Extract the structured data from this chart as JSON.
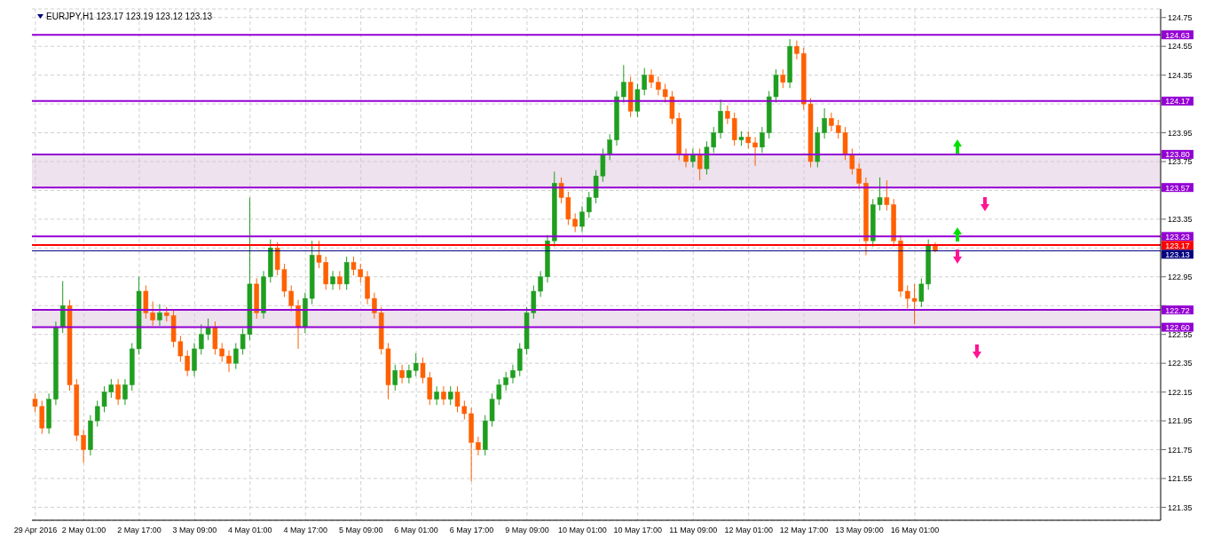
{
  "chart_data": {
    "type": "candlestick",
    "title": "EURJPY,H1  123.17 123.19 123.12 123.13",
    "categories": [
      "29 Apr 2016",
      null,
      null,
      null,
      null,
      null,
      null,
      "2 May 01:00",
      null,
      null,
      null,
      null,
      null,
      null,
      null,
      "2 May 17:00",
      null,
      null,
      null,
      null,
      null,
      null,
      null,
      "3 May 09:00",
      null,
      null,
      null,
      null,
      null,
      null,
      null,
      "4 May 01:00",
      null,
      null,
      null,
      null,
      null,
      null,
      null,
      "4 May 17:00",
      null,
      null,
      null,
      null,
      null,
      null,
      null,
      "5 May 09:00",
      null,
      null,
      null,
      null,
      null,
      null,
      null,
      "6 May 01:00",
      null,
      null,
      null,
      null,
      null,
      null,
      null,
      "6 May 17:00",
      null,
      null,
      null,
      null,
      null,
      null,
      null,
      "9 May 09:00",
      null,
      null,
      null,
      null,
      null,
      null,
      null,
      "10 May 01:00",
      null,
      null,
      null,
      null,
      null,
      null,
      null,
      "10 May 17:00",
      null,
      null,
      null,
      null,
      null,
      null,
      null,
      "11 May 09:00",
      null,
      null,
      null,
      null,
      null,
      null,
      null,
      "12 May 01:00",
      null,
      null,
      null,
      null,
      null,
      null,
      null,
      "12 May 17:00",
      null,
      null,
      null,
      null,
      null,
      null,
      null,
      "13 May 09:00",
      null,
      null,
      null,
      null,
      null,
      null,
      null,
      "16 May 01:00",
      null,
      null,
      null,
      null,
      null,
      null,
      null,
      null,
      null,
      null,
      null,
      null,
      null,
      null,
      null,
      null,
      null,
      null,
      null,
      null,
      null,
      null,
      null,
      null,
      null,
      null,
      null,
      null,
      null,
      null,
      null,
      null,
      null,
      null,
      null
    ],
    "ohlc": [
      [
        122.1,
        122.14,
        122.01,
        122.05
      ],
      [
        122.05,
        122.09,
        121.86,
        121.9
      ],
      [
        121.9,
        122.14,
        121.86,
        122.1
      ],
      [
        122.1,
        122.64,
        122.06,
        122.6
      ],
      [
        122.6,
        122.92,
        122.56,
        122.75
      ],
      [
        122.75,
        122.79,
        122.16,
        122.2
      ],
      [
        122.2,
        122.24,
        121.81,
        121.85
      ],
      [
        121.85,
        121.89,
        121.66,
        121.75
      ],
      [
        121.75,
        121.99,
        121.71,
        121.95
      ],
      [
        121.95,
        122.09,
        121.91,
        122.05
      ],
      [
        122.05,
        122.19,
        122.01,
        122.15
      ],
      [
        122.15,
        122.24,
        122.11,
        122.2
      ],
      [
        122.2,
        122.24,
        122.06,
        122.1
      ],
      [
        122.1,
        122.24,
        122.06,
        122.2
      ],
      [
        122.2,
        122.49,
        122.16,
        122.45
      ],
      [
        122.45,
        122.95,
        122.41,
        122.85
      ],
      [
        122.85,
        122.89,
        122.66,
        122.7
      ],
      [
        122.7,
        122.78,
        122.61,
        122.65
      ],
      [
        122.65,
        122.76,
        122.61,
        122.7
      ],
      [
        122.7,
        122.74,
        122.64,
        122.68
      ],
      [
        122.68,
        122.72,
        122.46,
        122.5
      ],
      [
        122.5,
        122.54,
        122.36,
        122.4
      ],
      [
        122.4,
        122.44,
        122.26,
        122.3
      ],
      [
        122.3,
        122.49,
        122.26,
        122.45
      ],
      [
        122.45,
        122.62,
        122.41,
        122.55
      ],
      [
        122.55,
        122.66,
        122.51,
        122.6
      ],
      [
        122.6,
        122.64,
        122.41,
        122.45
      ],
      [
        122.45,
        122.49,
        122.36,
        122.4
      ],
      [
        122.4,
        122.44,
        122.29,
        122.35
      ],
      [
        122.35,
        122.49,
        122.31,
        122.45
      ],
      [
        122.45,
        122.59,
        122.41,
        122.55
      ],
      [
        122.55,
        123.5,
        122.51,
        122.9
      ],
      [
        122.9,
        122.94,
        122.66,
        122.7
      ],
      [
        122.7,
        122.99,
        122.66,
        122.95
      ],
      [
        122.95,
        123.21,
        122.91,
        123.15
      ],
      [
        123.15,
        123.19,
        122.96,
        123.0
      ],
      [
        123.0,
        123.04,
        122.81,
        122.85
      ],
      [
        122.85,
        122.89,
        122.71,
        122.75
      ],
      [
        122.75,
        122.79,
        122.45,
        122.6
      ],
      [
        122.6,
        122.84,
        122.56,
        122.8
      ],
      [
        122.8,
        123.2,
        122.76,
        123.1
      ],
      [
        123.1,
        123.2,
        123.01,
        123.05
      ],
      [
        123.05,
        123.09,
        122.86,
        122.9
      ],
      [
        122.9,
        122.99,
        122.86,
        122.95
      ],
      [
        122.95,
        122.99,
        122.86,
        122.9
      ],
      [
        122.9,
        123.09,
        122.86,
        123.05
      ],
      [
        123.05,
        123.09,
        122.96,
        123.0
      ],
      [
        123.0,
        123.04,
        122.91,
        122.95
      ],
      [
        122.95,
        122.99,
        122.76,
        122.8
      ],
      [
        122.8,
        122.84,
        122.66,
        122.7
      ],
      [
        122.7,
        122.74,
        122.41,
        122.45
      ],
      [
        122.45,
        122.49,
        122.1,
        122.2
      ],
      [
        122.2,
        122.34,
        122.16,
        122.3
      ],
      [
        122.3,
        122.34,
        122.21,
        122.25
      ],
      [
        122.25,
        122.34,
        122.21,
        122.3
      ],
      [
        122.3,
        122.42,
        122.26,
        122.35
      ],
      [
        122.35,
        122.39,
        122.21,
        122.25
      ],
      [
        122.25,
        122.29,
        122.06,
        122.1
      ],
      [
        122.1,
        122.19,
        122.06,
        122.15
      ],
      [
        122.15,
        122.19,
        122.06,
        122.1
      ],
      [
        122.1,
        122.19,
        122.06,
        122.15
      ],
      [
        122.15,
        122.19,
        122.01,
        122.05
      ],
      [
        122.05,
        122.09,
        121.96,
        122.0
      ],
      [
        122.0,
        122.04,
        121.53,
        121.8
      ],
      [
        121.8,
        121.84,
        121.71,
        121.75
      ],
      [
        121.75,
        121.99,
        121.71,
        121.95
      ],
      [
        121.95,
        122.14,
        121.91,
        122.1
      ],
      [
        122.1,
        122.24,
        122.06,
        122.2
      ],
      [
        122.2,
        122.29,
        122.16,
        122.25
      ],
      [
        122.25,
        122.34,
        122.21,
        122.3
      ],
      [
        122.3,
        122.49,
        122.26,
        122.45
      ],
      [
        122.45,
        122.74,
        122.41,
        122.7
      ],
      [
        122.7,
        122.89,
        122.66,
        122.85
      ],
      [
        122.85,
        122.99,
        122.81,
        122.95
      ],
      [
        122.95,
        123.24,
        122.91,
        123.2
      ],
      [
        123.2,
        123.68,
        123.16,
        123.6
      ],
      [
        123.6,
        123.64,
        123.46,
        123.5
      ],
      [
        123.5,
        123.54,
        123.31,
        123.35
      ],
      [
        123.35,
        123.39,
        123.26,
        123.3
      ],
      [
        123.3,
        123.44,
        123.26,
        123.4
      ],
      [
        123.4,
        123.54,
        123.36,
        123.5
      ],
      [
        123.5,
        123.69,
        123.46,
        123.65
      ],
      [
        123.65,
        123.84,
        123.61,
        123.8
      ],
      [
        123.8,
        123.94,
        123.76,
        123.9
      ],
      [
        123.9,
        124.24,
        123.86,
        124.2
      ],
      [
        124.2,
        124.42,
        124.16,
        124.3
      ],
      [
        124.3,
        124.34,
        124.06,
        124.1
      ],
      [
        124.1,
        124.29,
        124.06,
        124.25
      ],
      [
        124.25,
        124.4,
        124.21,
        124.35
      ],
      [
        124.35,
        124.39,
        124.26,
        124.3
      ],
      [
        124.3,
        124.34,
        124.21,
        124.25
      ],
      [
        124.25,
        124.29,
        124.16,
        124.2
      ],
      [
        124.2,
        124.24,
        124.01,
        124.05
      ],
      [
        124.05,
        124.09,
        123.76,
        123.8
      ],
      [
        123.8,
        123.84,
        123.71,
        123.75
      ],
      [
        123.75,
        123.84,
        123.71,
        123.8
      ],
      [
        123.8,
        123.84,
        123.62,
        123.7
      ],
      [
        123.7,
        123.89,
        123.66,
        123.85
      ],
      [
        123.85,
        123.99,
        123.81,
        123.95
      ],
      [
        123.95,
        124.18,
        123.91,
        124.1
      ],
      [
        124.1,
        124.14,
        124.01,
        124.05
      ],
      [
        124.05,
        124.09,
        123.86,
        123.9
      ],
      [
        123.9,
        123.96,
        123.86,
        123.92
      ],
      [
        123.92,
        123.96,
        123.84,
        123.88
      ],
      [
        123.88,
        123.92,
        123.72,
        123.85
      ],
      [
        123.85,
        123.99,
        123.81,
        123.95
      ],
      [
        123.95,
        124.24,
        123.91,
        124.2
      ],
      [
        124.2,
        124.39,
        124.16,
        124.35
      ],
      [
        124.35,
        124.39,
        124.26,
        124.3
      ],
      [
        124.3,
        124.6,
        124.26,
        124.55
      ],
      [
        124.55,
        124.59,
        124.46,
        124.5
      ],
      [
        124.5,
        124.54,
        124.11,
        124.15
      ],
      [
        124.15,
        124.19,
        123.71,
        123.75
      ],
      [
        123.75,
        123.99,
        123.71,
        123.95
      ],
      [
        123.95,
        124.12,
        123.91,
        124.05
      ],
      [
        124.05,
        124.09,
        123.96,
        124.0
      ],
      [
        124.0,
        124.04,
        123.91,
        123.95
      ],
      [
        123.95,
        123.99,
        123.76,
        123.8
      ],
      [
        123.8,
        123.84,
        123.66,
        123.7
      ],
      [
        123.7,
        123.74,
        123.56,
        123.6
      ],
      [
        123.6,
        123.64,
        123.1,
        123.2
      ],
      [
        123.2,
        123.49,
        123.16,
        123.45
      ],
      [
        123.45,
        123.64,
        123.41,
        123.5
      ],
      [
        123.5,
        123.62,
        123.41,
        123.45
      ],
      [
        123.45,
        123.49,
        123.16,
        123.2
      ],
      [
        123.2,
        123.24,
        122.81,
        122.85
      ],
      [
        122.85,
        122.89,
        122.73,
        122.8
      ],
      [
        122.8,
        122.9,
        122.62,
        122.78
      ],
      [
        122.78,
        122.94,
        122.74,
        122.9
      ],
      [
        122.9,
        123.21,
        122.86,
        123.17
      ],
      [
        123.17,
        123.19,
        123.12,
        123.13
      ],
      null,
      null,
      null,
      null,
      null,
      null,
      null,
      null,
      null,
      null,
      null,
      null,
      null,
      null,
      null,
      null,
      null,
      null,
      null,
      null,
      null,
      null,
      null,
      null,
      null,
      null,
      null,
      null,
      null,
      null,
      null,
      null
    ],
    "ylim": [
      121.26,
      124.81
    ],
    "yticks": [
      121.35,
      121.55,
      121.75,
      121.95,
      122.15,
      122.35,
      122.55,
      {
        "value": 122.75,
        "label": null
      },
      122.95,
      {
        "value": 123.15,
        "label": null
      },
      123.35,
      {
        "value": 123.55,
        "label": null
      },
      123.75,
      123.95,
      {
        "value": 124.15,
        "label": null
      },
      124.35,
      124.55,
      124.75
    ],
    "grid": true,
    "ref_lines": [
      {
        "axis": "y",
        "value": 124.63,
        "label": "124.63",
        "color": "#9400d3"
      },
      {
        "axis": "y",
        "value": 124.17,
        "label": "124.17",
        "color": "#9400d3"
      },
      {
        "axis": "y",
        "value": 123.8,
        "label": "123.80",
        "color": "#9400d3"
      },
      {
        "axis": "y",
        "value": 123.57,
        "label": "123.57",
        "color": "#9400d3"
      },
      {
        "axis": "y",
        "value": 123.23,
        "label": "123.23",
        "color": "#9400d3"
      },
      {
        "axis": "y",
        "value": 123.17,
        "label": "123.17",
        "color": "#ff0000"
      },
      {
        "axis": "y",
        "value": 123.13,
        "label": "123.13",
        "color": "#000080"
      },
      {
        "axis": "y",
        "value": 122.72,
        "label": "122.72",
        "color": "#9400d3"
      },
      {
        "axis": "y",
        "value": 122.6,
        "label": "122.60",
        "color": "#9400d3"
      }
    ],
    "bands": [
      {
        "axis": "y",
        "from": 123.57,
        "to": 123.8,
        "color": "#d8bfd8"
      },
      {
        "axis": "y",
        "from": 122.6,
        "to": 122.72,
        "color": "#d8bfd8"
      }
    ]
  }
}
